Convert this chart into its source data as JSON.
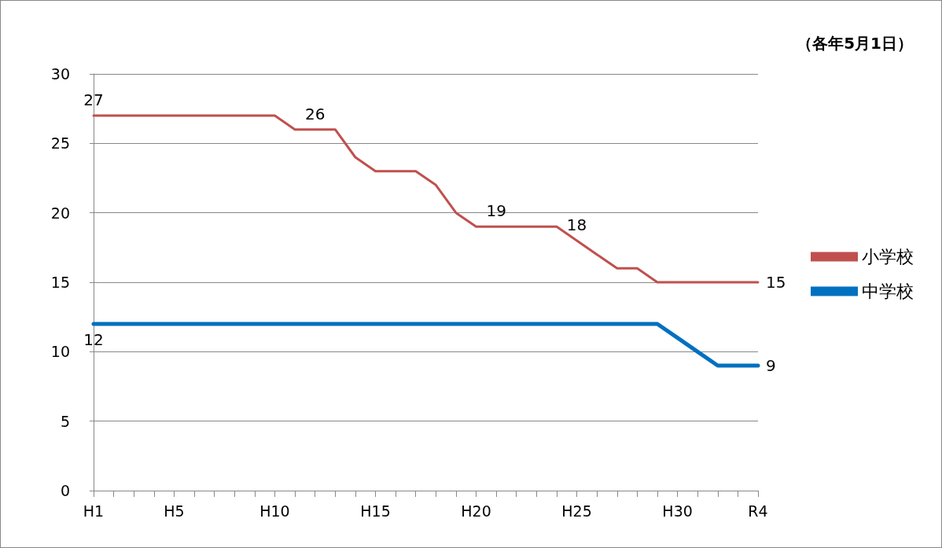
{
  "chart_data": {
    "type": "line",
    "annotations": [
      "（各年5月1日）"
    ],
    "categories": [
      "H1",
      null,
      null,
      null,
      "H5",
      null,
      null,
      null,
      null,
      "H10",
      null,
      null,
      null,
      null,
      "H15",
      null,
      null,
      null,
      null,
      "H20",
      null,
      null,
      null,
      null,
      "H25",
      null,
      null,
      null,
      null,
      "H30",
      null,
      null,
      null,
      "R4"
    ],
    "series": [
      {
        "name": "小学校",
        "color": "#c0504d",
        "values": [
          27,
          27,
          27,
          27,
          27,
          27,
          27,
          27,
          27,
          27,
          26,
          26,
          26,
          24,
          23,
          23,
          23,
          22,
          20,
          19,
          19,
          19,
          19,
          19,
          18,
          17,
          16,
          16,
          15,
          15,
          15,
          15,
          15,
          15
        ],
        "value_labels": [
          "27",
          null,
          null,
          null,
          null,
          null,
          null,
          null,
          null,
          null,
          null,
          "26",
          null,
          null,
          null,
          null,
          null,
          null,
          null,
          null,
          "19",
          null,
          null,
          null,
          "18",
          null,
          null,
          null,
          null,
          null,
          null,
          null,
          null,
          "15"
        ]
      },
      {
        "name": "中学校",
        "color": "#0070c0",
        "values": [
          12,
          12,
          12,
          12,
          12,
          12,
          12,
          12,
          12,
          12,
          12,
          12,
          12,
          12,
          12,
          12,
          12,
          12,
          12,
          12,
          12,
          12,
          12,
          12,
          12,
          12,
          12,
          12,
          12,
          11,
          10,
          9,
          9,
          9
        ],
        "value_labels": [
          "12",
          null,
          null,
          null,
          null,
          null,
          null,
          null,
          null,
          null,
          null,
          null,
          null,
          null,
          null,
          null,
          null,
          null,
          null,
          null,
          null,
          null,
          null,
          null,
          null,
          null,
          null,
          null,
          null,
          null,
          null,
          null,
          null,
          "9"
        ]
      }
    ],
    "ylim": [
      0,
      30
    ],
    "yticks": [
      0,
      5,
      10,
      15,
      20,
      25,
      30
    ],
    "grid": "y",
    "legend": "right",
    "marker": "none",
    "line_style": "solid"
  }
}
